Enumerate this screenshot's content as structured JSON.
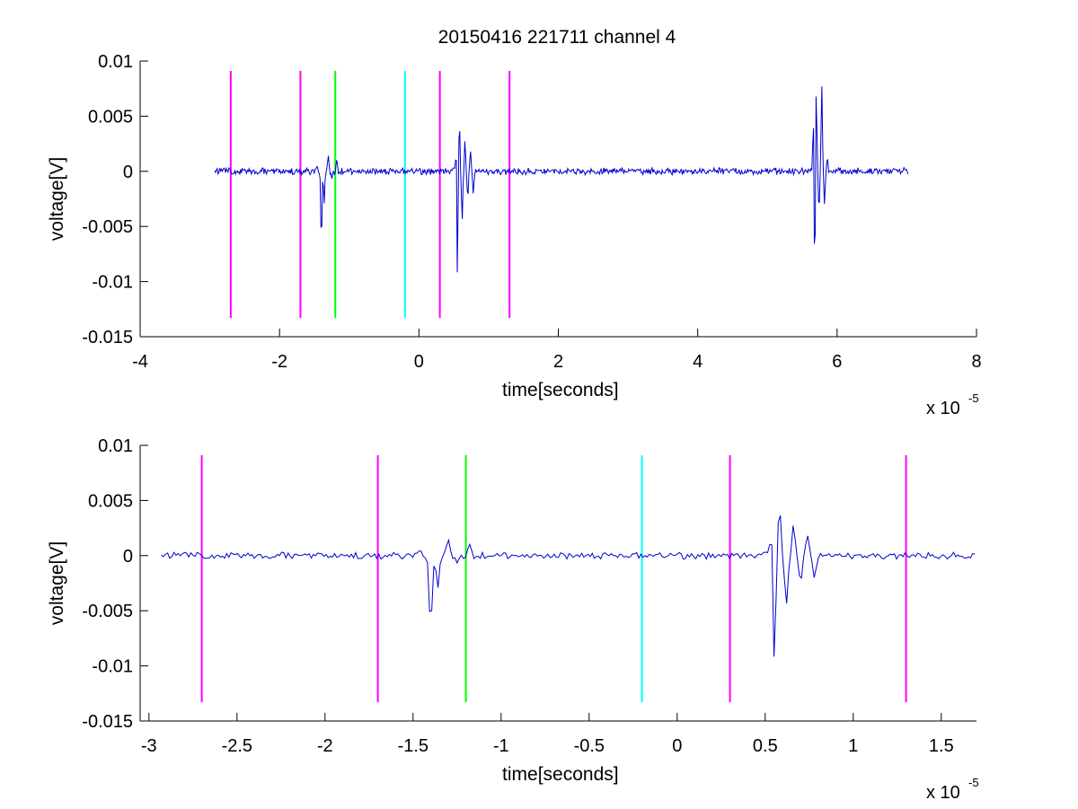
{
  "figure": {
    "title": "20150416 221711 channel 4"
  },
  "chart_data": [
    {
      "type": "line",
      "title": "20150416 221711 channel 4",
      "xlabel": "time[seconds]",
      "ylabel": "voltage[V]",
      "x_exponent_base": "x 10",
      "x_exponent_power": "-5",
      "xlim": [
        -4,
        8
      ],
      "ylim": [
        -0.015,
        0.01
      ],
      "x_ticks": [
        -4,
        -2,
        0,
        2,
        4,
        6,
        8
      ],
      "x_tick_labels": [
        "-4",
        "-2",
        "0",
        "2",
        "4",
        "6",
        "8"
      ],
      "y_ticks": [
        -0.015,
        -0.01,
        -0.005,
        0,
        0.005,
        0.01
      ],
      "y_tick_labels": [
        "-0.015",
        "-0.01",
        "-0.005",
        "0",
        "0.005",
        "0.01"
      ],
      "grid": false,
      "series": [
        {
          "color": "#0000cc",
          "noise_amplitude": 0.00025,
          "x_range": [
            -2.93,
            7.02
          ],
          "features": [
            {
              "x": -1.46,
              "y": 0.0005
            },
            {
              "x": -1.4,
              "y": -0.0065
            },
            {
              "x": -1.36,
              "y": -0.003
            },
            {
              "x": -1.3,
              "y": 0.0016
            },
            {
              "x": -1.25,
              "y": -0.0008
            },
            {
              "x": -1.18,
              "y": 0.001
            },
            {
              "x": 0.54,
              "y": 0.0057
            },
            {
              "x": 0.55,
              "y": -0.012
            },
            {
              "x": 0.58,
              "y": 0.0045
            },
            {
              "x": 0.62,
              "y": -0.0045
            },
            {
              "x": 0.66,
              "y": 0.0028
            },
            {
              "x": 0.7,
              "y": -0.0025
            },
            {
              "x": 0.74,
              "y": 0.0018
            },
            {
              "x": 0.78,
              "y": -0.0022
            },
            {
              "x": 5.66,
              "y": 0.0052
            },
            {
              "x": 5.68,
              "y": -0.0102
            },
            {
              "x": 5.7,
              "y": 0.0083
            },
            {
              "x": 5.74,
              "y": -0.0035
            },
            {
              "x": 5.78,
              "y": 0.0079
            },
            {
              "x": 5.82,
              "y": -0.0032
            },
            {
              "x": 5.86,
              "y": 0.0012
            }
          ]
        }
      ],
      "markers": [
        {
          "x": -2.7,
          "color": "#ff00ff"
        },
        {
          "x": -1.7,
          "color": "#ff00ff"
        },
        {
          "x": -1.2,
          "color": "#00ff00"
        },
        {
          "x": -0.2,
          "color": "#00ffff"
        },
        {
          "x": 0.3,
          "color": "#ff00ff"
        },
        {
          "x": 1.3,
          "color": "#ff00ff"
        }
      ],
      "marker_ylim": [
        -0.0133,
        0.0091
      ]
    },
    {
      "type": "line",
      "title": "",
      "xlabel": "time[seconds]",
      "ylabel": "voltage[V]",
      "x_exponent_base": "x 10",
      "x_exponent_power": "-5",
      "xlim": [
        -3.05,
        1.7
      ],
      "ylim": [
        -0.015,
        0.01
      ],
      "x_ticks": [
        -3,
        -2.5,
        -2,
        -1.5,
        -1,
        -0.5,
        0,
        0.5,
        1,
        1.5
      ],
      "x_tick_labels": [
        "-3",
        "-2.5",
        "-2",
        "-1.5",
        "-1",
        "-0.5",
        "0",
        "0.5",
        "1",
        "1.5"
      ],
      "y_ticks": [
        -0.015,
        -0.01,
        -0.005,
        0,
        0.005,
        0.01
      ],
      "y_tick_labels": [
        "-0.015",
        "-0.01",
        "-0.005",
        "0",
        "0.005",
        "0.01"
      ],
      "grid": false,
      "series": [
        {
          "color": "#0000cc",
          "noise_amplitude": 0.00025,
          "x_range": [
            -2.93,
            1.7
          ],
          "features": [
            {
              "x": -1.46,
              "y": 0.0005
            },
            {
              "x": -1.4,
              "y": -0.0065
            },
            {
              "x": -1.36,
              "y": -0.003
            },
            {
              "x": -1.3,
              "y": 0.0016
            },
            {
              "x": -1.25,
              "y": -0.0008
            },
            {
              "x": -1.18,
              "y": 0.001
            },
            {
              "x": 0.54,
              "y": 0.0057
            },
            {
              "x": 0.55,
              "y": -0.012
            },
            {
              "x": 0.58,
              "y": 0.0045
            },
            {
              "x": 0.62,
              "y": -0.0045
            },
            {
              "x": 0.66,
              "y": 0.0028
            },
            {
              "x": 0.7,
              "y": -0.0025
            },
            {
              "x": 0.74,
              "y": 0.0018
            },
            {
              "x": 0.78,
              "y": -0.0022
            }
          ]
        }
      ],
      "markers": [
        {
          "x": -2.7,
          "color": "#ff00ff"
        },
        {
          "x": -1.7,
          "color": "#ff00ff"
        },
        {
          "x": -1.2,
          "color": "#00ff00"
        },
        {
          "x": -0.2,
          "color": "#00ffff"
        },
        {
          "x": 0.3,
          "color": "#ff00ff"
        },
        {
          "x": 1.3,
          "color": "#ff00ff"
        }
      ],
      "marker_ylim": [
        -0.0133,
        0.0091
      ]
    }
  ]
}
